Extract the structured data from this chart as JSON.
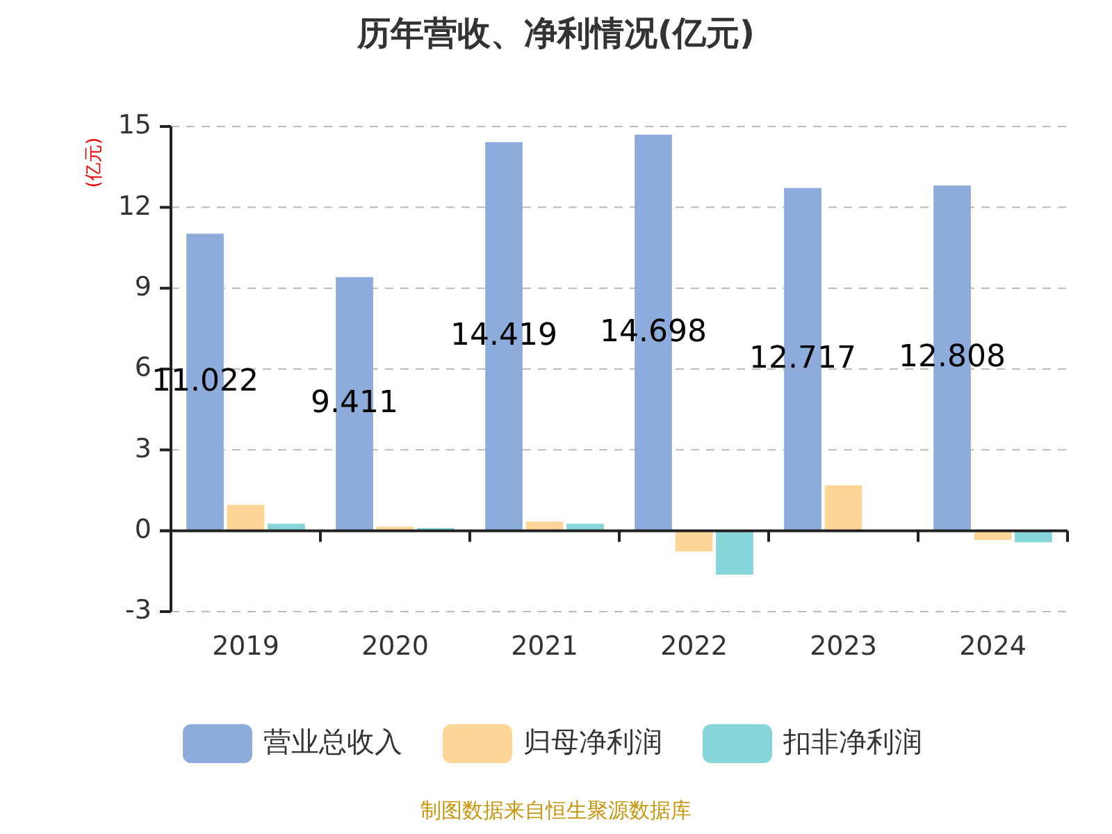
{
  "chart_data": {
    "type": "bar",
    "title": "历年营收、净利情况(亿元)",
    "ylabel": "(亿元)",
    "categories": [
      "2019",
      "2020",
      "2021",
      "2022",
      "2023",
      "2024"
    ],
    "series": [
      {
        "name": "营业总收入",
        "color": "#8dacdb",
        "values": [
          11.022,
          9.411,
          14.419,
          14.698,
          12.717,
          12.808
        ],
        "value_labels": [
          "11.022",
          "9.411",
          "14.419",
          "14.698",
          "12.717",
          "12.808"
        ]
      },
      {
        "name": "归母净利润",
        "color": "#fed798",
        "values": [
          0.96,
          0.15,
          0.34,
          -0.77,
          1.69,
          -0.34
        ]
      },
      {
        "name": "扣非净利润",
        "color": "#86d5d9",
        "values": [
          0.26,
          0.1,
          0.26,
          -1.63,
          null,
          -0.43
        ]
      }
    ],
    "ylim": [
      -3,
      15
    ],
    "yticks": [
      -3,
      0,
      3,
      6,
      9,
      12,
      15
    ],
    "grid": "y",
    "legend": "bottom",
    "annotations": [
      "制图数据来自恒生聚源数据库"
    ]
  }
}
